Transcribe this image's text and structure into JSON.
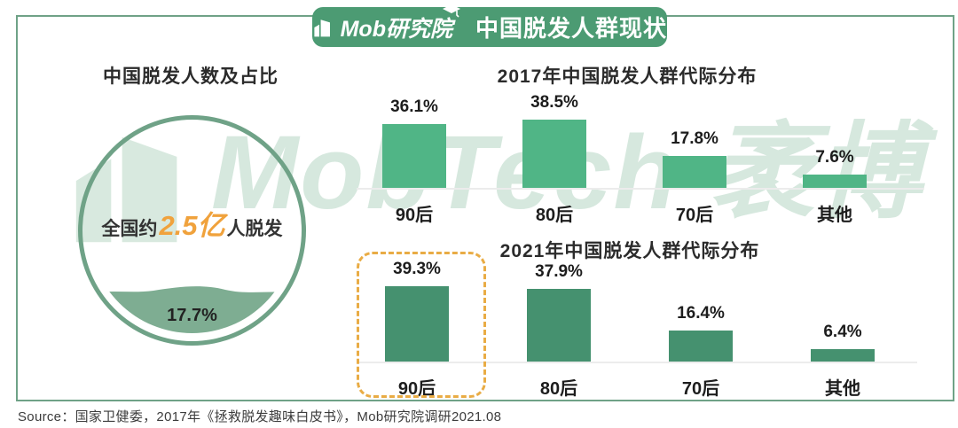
{
  "header": {
    "brand": "Mob研究院",
    "title": "中国脱发人群现状"
  },
  "watermark": {
    "text": "MobTech 袤博"
  },
  "source": "Source：国家卫健委，2017年《拯救脱发趣味白皮书》，Mob研究院调研2021.08",
  "colors": {
    "badge_green": "#4C9B73",
    "frame_border": "#6FA287",
    "bar_2017": "#50B586",
    "bar_2021": "#45916F",
    "circle_stroke": "#6FA287",
    "wave_fill": "#7EAD92",
    "accent_orange": "#F0A23C",
    "highlight_dash": "#E9AC45",
    "watermark_green": "#9EC7B0"
  },
  "chart_data": [
    {
      "type": "gauge",
      "title": "中国脱发人数及占比",
      "label_prefix": "全国约",
      "label_value": "2.5亿",
      "label_suffix": "人脱发",
      "fill_percent": 17.7,
      "fill_label": "17.7%"
    },
    {
      "type": "bar",
      "title": "2017年中国脱发人群代际分布",
      "categories": [
        "90后",
        "80后",
        "70后",
        "其他"
      ],
      "values": [
        36.1,
        38.5,
        17.8,
        7.6
      ],
      "labels": [
        "36.1%",
        "38.5%",
        "17.8%",
        "7.6%"
      ],
      "unit": "%",
      "bar_color": "#50B586",
      "ylim": [
        0,
        45
      ],
      "grid": false,
      "highlight": null
    },
    {
      "type": "bar",
      "title": "2021年中国脱发人群代际分布",
      "categories": [
        "90后",
        "80后",
        "70后",
        "其他"
      ],
      "values": [
        39.3,
        37.9,
        16.4,
        6.4
      ],
      "labels": [
        "39.3%",
        "37.9%",
        "16.4%",
        "6.4%"
      ],
      "unit": "%",
      "bar_color": "#45916F",
      "ylim": [
        0,
        45
      ],
      "grid": false,
      "highlight": "90后"
    }
  ]
}
